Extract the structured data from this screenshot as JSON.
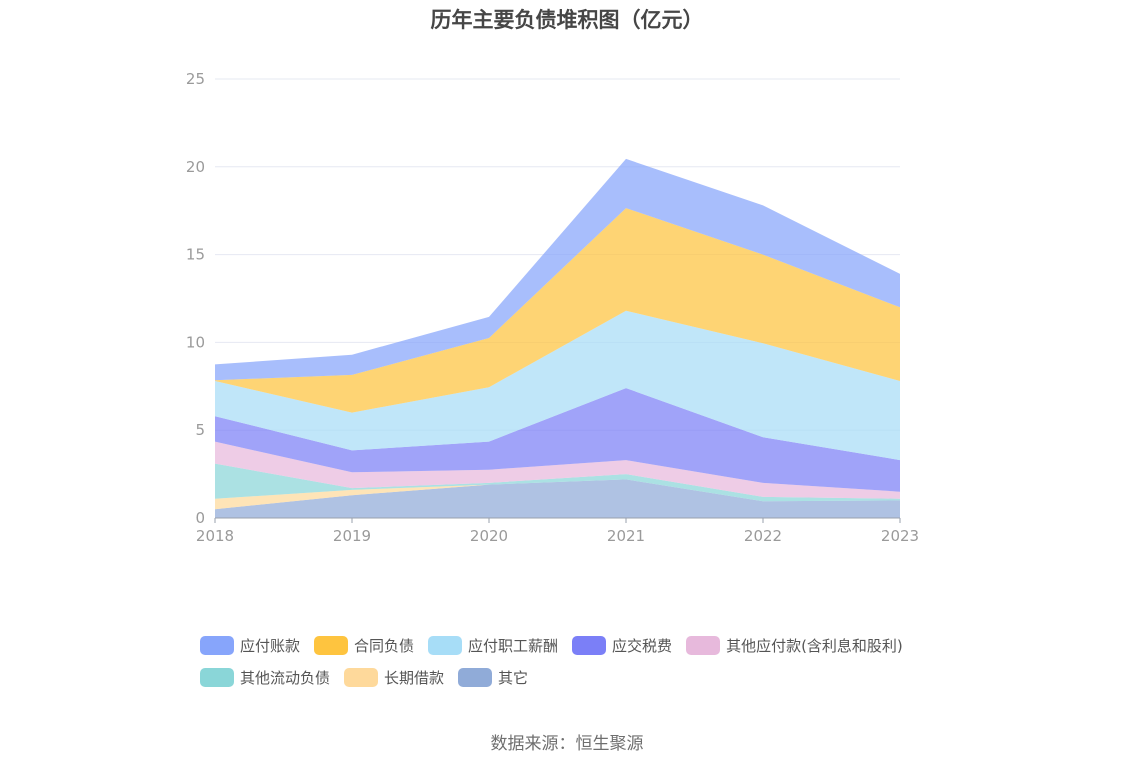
{
  "chart_data": {
    "type": "area",
    "stacked": true,
    "title": "历年主要负债堆积图（亿元）",
    "categories": [
      "2018",
      "2019",
      "2020",
      "2021",
      "2022",
      "2023"
    ],
    "ylim": [
      0,
      25
    ],
    "yticks": [
      0,
      5,
      10,
      15,
      20,
      25
    ],
    "grid": true,
    "legend_position": "bottom",
    "series": [
      {
        "name": "其它",
        "color": "#90abd8",
        "values": [
          0.5,
          1.3,
          1.9,
          2.2,
          0.95,
          1.0
        ]
      },
      {
        "name": "长期借款",
        "color": "#fed99b",
        "values": [
          0.6,
          0.3,
          0.0,
          0.0,
          0.0,
          0.0
        ]
      },
      {
        "name": "其他流动负债",
        "color": "#8ad6d8",
        "values": [
          2.0,
          0.1,
          0.1,
          0.3,
          0.25,
          0.1
        ]
      },
      {
        "name": "其他应付款(含利息和股利)",
        "color": "#e7b9dc",
        "values": [
          1.25,
          0.9,
          0.75,
          0.8,
          0.8,
          0.4
        ]
      },
      {
        "name": "应交税费",
        "color": "#7b7ff7",
        "values": [
          1.45,
          1.25,
          1.6,
          4.1,
          2.6,
          1.8
        ]
      },
      {
        "name": "应付职工薪酬",
        "color": "#a7ddf7",
        "values": [
          2.0,
          2.15,
          3.1,
          4.4,
          5.35,
          4.5
        ]
      },
      {
        "name": "合同负债",
        "color": "#fec43f",
        "values": [
          0.05,
          2.15,
          2.8,
          5.85,
          5.05,
          4.2
        ]
      },
      {
        "name": "应付账款",
        "color": "#87a5fb",
        "values": [
          0.9,
          1.15,
          1.2,
          2.8,
          2.8,
          1.9
        ]
      }
    ]
  },
  "legend": [
    {
      "label": "应付账款",
      "color": "#87a5fb"
    },
    {
      "label": "合同负债",
      "color": "#fec43f"
    },
    {
      "label": "应付职工薪酬",
      "color": "#a7ddf7"
    },
    {
      "label": "应交税费",
      "color": "#7b7ff7"
    },
    {
      "label": "其他应付款(含利息和股利)",
      "color": "#e7b9dc"
    },
    {
      "label": "其他流动负债",
      "color": "#8ad6d8"
    },
    {
      "label": "长期借款",
      "color": "#fed99b"
    },
    {
      "label": "其它",
      "color": "#90abd8"
    }
  ],
  "source": "数据来源：恒生聚源"
}
